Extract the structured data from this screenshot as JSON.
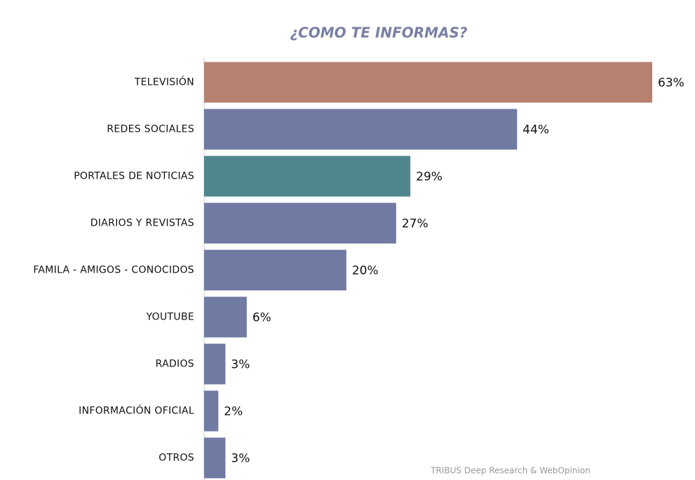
{
  "chart_data": {
    "type": "hbar",
    "title": "¿COMO TE INFORMAS?",
    "source": "TRIBUS Deep Research & WebOpinion",
    "categories": [
      "TELEVISIÓN",
      "REDES SOCIALES",
      "PORTALES DE NOTICIAS",
      "DIARIOS Y REVISTAS",
      "FAMILA - AMIGOS - CONOCIDOS",
      "YOUTUBE",
      "RADIOS",
      "INFORMACIÓN OFICIAL",
      "OTROS"
    ],
    "values": [
      63,
      44,
      29,
      27,
      20,
      6,
      3,
      2,
      3
    ],
    "value_labels": [
      "63%",
      "44%",
      "29%",
      "27%",
      "20%",
      "6%",
      "3%",
      "2%",
      "3%"
    ],
    "colors": [
      "#b5826f",
      "#717aa3",
      "#4f868e",
      "#717aa3",
      "#717aa3",
      "#717aa3",
      "#717aa3",
      "#717aa3",
      "#717aa3"
    ]
  }
}
